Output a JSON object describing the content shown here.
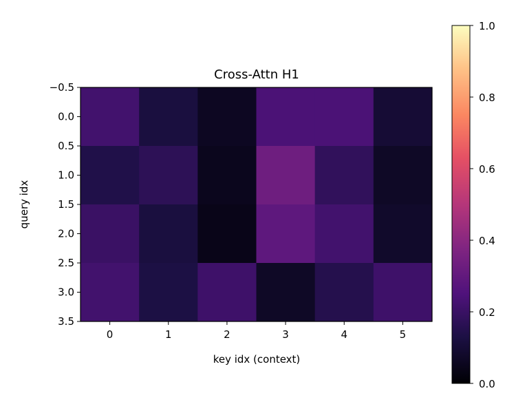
{
  "chart_data": {
    "type": "heatmap",
    "title": "Cross-Attn H1",
    "xlabel": "key idx (context)",
    "ylabel": "query idx",
    "x_categories": [
      "0",
      "1",
      "2",
      "3",
      "4",
      "5"
    ],
    "y_ticks": [
      "−0.5",
      "0.0",
      "0.5",
      "1.0",
      "1.5",
      "2.0",
      "2.5",
      "3.0",
      "3.5"
    ],
    "ylim": [
      3.5,
      -0.5
    ],
    "matrix": [
      [
        0.22,
        0.12,
        0.06,
        0.24,
        0.24,
        0.1
      ],
      [
        0.14,
        0.17,
        0.05,
        0.33,
        0.18,
        0.07
      ],
      [
        0.2,
        0.12,
        0.04,
        0.29,
        0.22,
        0.08
      ],
      [
        0.22,
        0.13,
        0.21,
        0.07,
        0.15,
        0.21
      ]
    ],
    "colorbar": {
      "colormap": "magma",
      "range": [
        0.0,
        1.0
      ],
      "ticks": [
        "0.0",
        "0.2",
        "0.4",
        "0.6",
        "0.8",
        "1.0"
      ]
    },
    "grid": false
  }
}
